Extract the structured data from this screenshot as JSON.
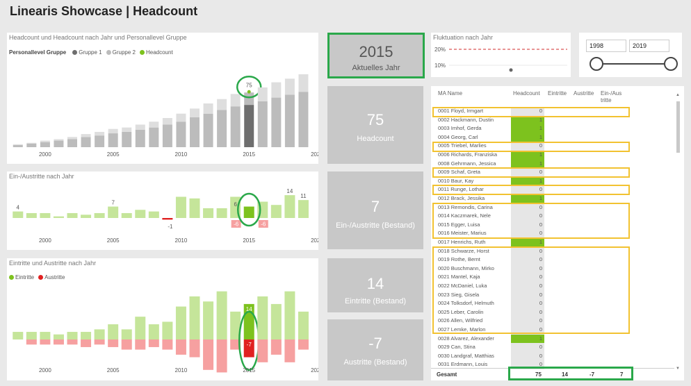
{
  "title": "Linearis Showcase | Headcount",
  "colors": {
    "green": "#7dc21e",
    "lightgreen": "#c5e59a",
    "red": "#e02020",
    "lightred": "#f6a0a0",
    "gray": "#bcbcbc",
    "lightgray": "#dedede",
    "dark": "#6e6e6e"
  },
  "chart1": {
    "title": "Headcount und Headcount nach Jahr und Personallevel Gruppe",
    "legend_title": "Personallevel Gruppe",
    "legend": [
      "Gruppe 1",
      "Gruppe 2",
      "Headcount"
    ],
    "annotation": "75",
    "xticks": [
      "2000",
      "2005",
      "2010",
      "2015",
      "2020"
    ]
  },
  "chart2": {
    "title": "Ein-/Austritte nach Jahr",
    "labels": [
      "4",
      "7",
      "-1",
      "6",
      "7",
      "-6",
      "-6",
      "14",
      "11"
    ],
    "xticks": [
      "2000",
      "2005",
      "2010",
      "2015",
      "2020"
    ]
  },
  "chart3": {
    "title": "Eintritte und Austritte nach Jahr",
    "legend": [
      "Eintritte",
      "Austritte"
    ],
    "labels": [
      "14",
      "-7"
    ],
    "xticks": [
      "2000",
      "2005",
      "2010",
      "2015",
      "2020"
    ]
  },
  "chart_data": [
    {
      "type": "bar",
      "title": "Headcount und Headcount nach Jahr und Personallevel Gruppe",
      "categories": [
        1998,
        1999,
        2000,
        2001,
        2002,
        2003,
        2004,
        2005,
        2006,
        2007,
        2008,
        2009,
        2010,
        2011,
        2012,
        2013,
        2014,
        2015,
        2016,
        2017,
        2018,
        2019
      ],
      "series": [
        {
          "name": "Gruppe 1",
          "values": [
            3,
            5,
            7,
            9,
            11,
            14,
            16,
            19,
            21,
            24,
            27,
            31,
            35,
            41,
            46,
            51,
            56,
            58,
            63,
            68,
            72,
            76
          ]
        },
        {
          "name": "Gruppe 2",
          "values": [
            1,
            1,
            2,
            2,
            3,
            4,
            5,
            6,
            6,
            7,
            8,
            9,
            11,
            12,
            14,
            15,
            17,
            17,
            19,
            21,
            22,
            24
          ]
        }
      ],
      "highlight": {
        "year": 2015,
        "label": "75"
      },
      "xlim": [
        1997.5,
        2020
      ],
      "ylim": [
        0,
        100
      ]
    },
    {
      "type": "bar",
      "title": "Ein-/Austritte nach Jahr",
      "categories": [
        1998,
        1999,
        2000,
        2001,
        2002,
        2003,
        2004,
        2005,
        2006,
        2007,
        2008,
        2009,
        2010,
        2011,
        2012,
        2013,
        2014,
        2015,
        2016,
        2017,
        2018,
        2019
      ],
      "values": [
        4,
        3,
        3,
        1,
        3,
        2,
        3,
        7,
        3,
        5,
        4,
        -1,
        13,
        12,
        6,
        6,
        13,
        7,
        10,
        8,
        14,
        11
      ],
      "ylim": [
        -8,
        16
      ]
    },
    {
      "type": "bar",
      "title": "Eintritte und Austritte nach Jahr",
      "categories": [
        1998,
        1999,
        2000,
        2001,
        2002,
        2003,
        2004,
        2005,
        2006,
        2007,
        2008,
        2009,
        2010,
        2011,
        2012,
        2013,
        2014,
        2015,
        2016,
        2017,
        2018,
        2019
      ],
      "series": [
        {
          "name": "Eintritte",
          "values": [
            3,
            3,
            3,
            2,
            3,
            3,
            4,
            6,
            4,
            9,
            6,
            7,
            13,
            17,
            15,
            19,
            11,
            14,
            17,
            14,
            19,
            11
          ]
        },
        {
          "name": "Austritte",
          "values": [
            0,
            -2,
            -2,
            -2,
            -2,
            -3,
            -2,
            -3,
            -4,
            -4,
            -3,
            -4,
            -6,
            -7,
            -12,
            -13,
            -4,
            -7,
            -9,
            -6,
            -9,
            -4
          ]
        }
      ],
      "ylim": [
        -14,
        20
      ]
    }
  ],
  "kpis": [
    {
      "value": "2015",
      "label": "Aktuelles Jahr"
    },
    {
      "value": "75",
      "label": "Headcount"
    },
    {
      "value": "7",
      "label": "Ein-/Austritte (Bestand)"
    },
    {
      "value": "14",
      "label": "Eintritte (Bestand)"
    },
    {
      "value": "-7",
      "label": "Austritte (Bestand)"
    }
  ],
  "fluktuation": {
    "title": "Fluktuation nach Jahr",
    "y1": "20%",
    "y2": "10%",
    "value": 0.07
  },
  "slicer": {
    "from": "1998",
    "to": "2019"
  },
  "table": {
    "columns": [
      "MA Name",
      "Headcount",
      "Eintritte",
      "Austritte",
      "Ein-/Aus tritte"
    ],
    "rows": [
      {
        "name": "0001 Floyd, Irmgart",
        "hc": "0"
      },
      {
        "name": "0002 Hackmann, Dustin",
        "hc": "1"
      },
      {
        "name": "0003 Imhof, Gerda",
        "hc": "1"
      },
      {
        "name": "0004 Georg, Carl",
        "hc": "1"
      },
      {
        "name": "0005 Triebel, Marlies",
        "hc": "0"
      },
      {
        "name": "0006 Richards, Franziska",
        "hc": "1"
      },
      {
        "name": "0008 Gehrmann, Jessica",
        "hc": "1"
      },
      {
        "name": "0009 Schaf, Greta",
        "hc": "0"
      },
      {
        "name": "0010 Baur, Kay",
        "hc": "1"
      },
      {
        "name": "0011 Runge, Lothar",
        "hc": "0"
      },
      {
        "name": "0012 Brack, Jessika",
        "hc": "1"
      },
      {
        "name": "0013 Remondis, Carina",
        "hc": "0"
      },
      {
        "name": "0014 Kaczmarek, Nele",
        "hc": "0"
      },
      {
        "name": "0015 Egger, Luisa",
        "hc": "0"
      },
      {
        "name": "0016 Meister, Marius",
        "hc": "0"
      },
      {
        "name": "0017 Henrichs, Ruth",
        "hc": "1"
      },
      {
        "name": "0018 Schwarze, Horst",
        "hc": "0"
      },
      {
        "name": "0019 Rothe, Bernt",
        "hc": "0"
      },
      {
        "name": "0020 Buschmann, Mirko",
        "hc": "0"
      },
      {
        "name": "0021 Mantel, Kaja",
        "hc": "0"
      },
      {
        "name": "0022 McDaniel, Luka",
        "hc": "0"
      },
      {
        "name": "0023 Sieg, Gisela",
        "hc": "0"
      },
      {
        "name": "0024 Tolksdorf, Helmuth",
        "hc": "0"
      },
      {
        "name": "0025 Leber, Carolin",
        "hc": "0"
      },
      {
        "name": "0026 Allen, Wilfried",
        "hc": "0"
      },
      {
        "name": "0027 Lemke, Marlon",
        "hc": "0"
      },
      {
        "name": "0028 Alvarez, Alexander",
        "hc": "1"
      },
      {
        "name": "0029 Can, Stina",
        "hc": "0"
      },
      {
        "name": "0030 Landgraf, Matthias",
        "hc": "0"
      },
      {
        "name": "0031 Erdmann, Louis",
        "hc": "0"
      }
    ],
    "footer": {
      "label": "Gesamt",
      "headcount": "75",
      "eintritte": "14",
      "austritte": "-7",
      "einaus": "7"
    }
  }
}
